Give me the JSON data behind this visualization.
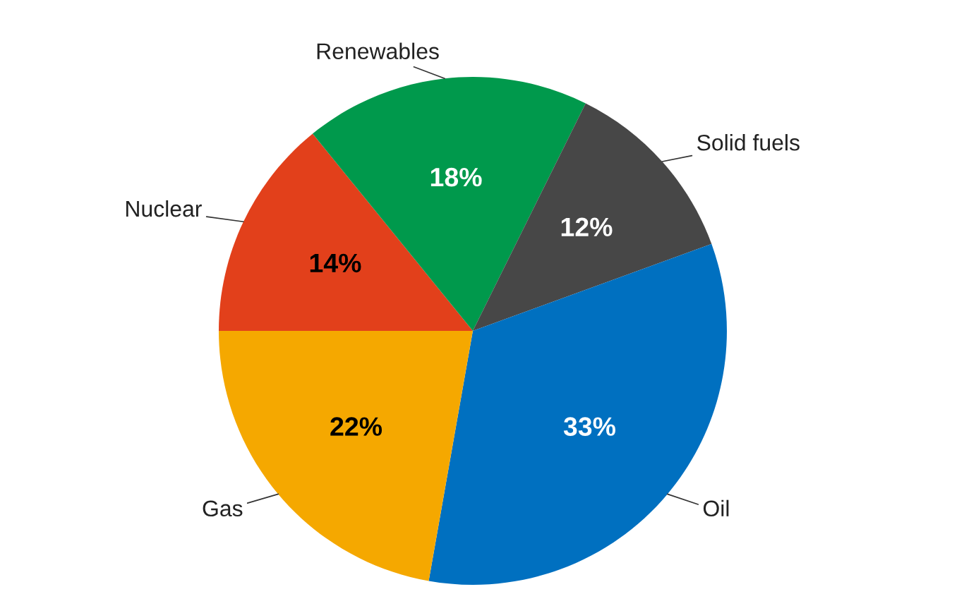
{
  "chart_data": {
    "type": "pie",
    "categories": [
      "Nuclear",
      "Renewables",
      "Solid fuels",
      "Oil",
      "Gas"
    ],
    "values": [
      14,
      18,
      12,
      33,
      22
    ],
    "value_labels": [
      "14%",
      "18%",
      "12%",
      "33%",
      "22%"
    ],
    "colors": [
      "#e2401b",
      "#00994c",
      "#474747",
      "#0070c0",
      "#f5a800"
    ]
  }
}
